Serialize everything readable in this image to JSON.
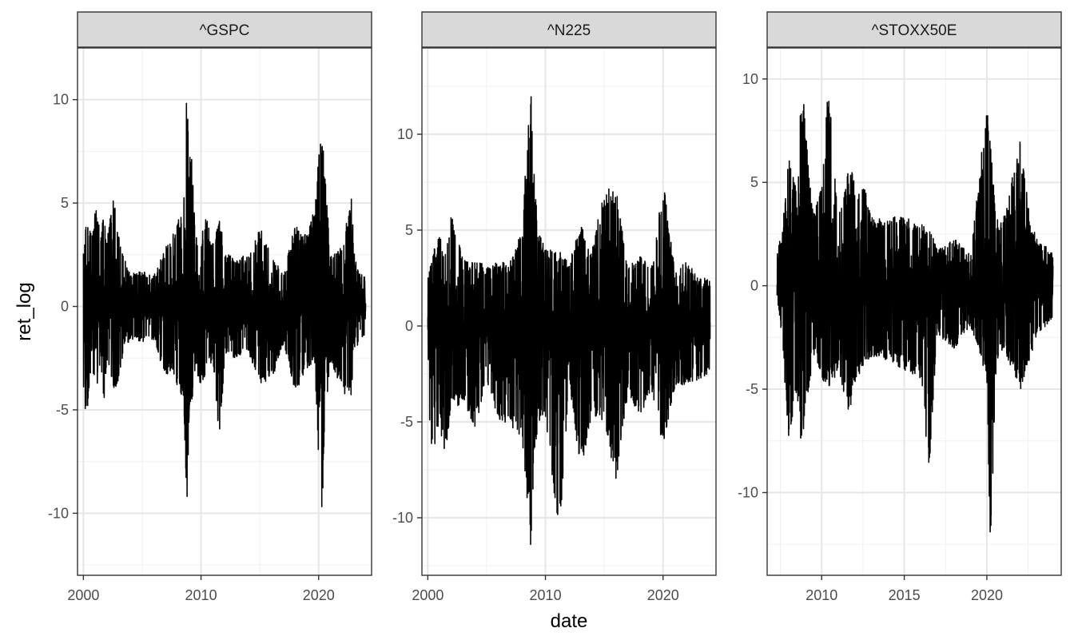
{
  "chart_data": {
    "type": "line",
    "xlabel": "date",
    "ylabel": "ret_log",
    "facets": [
      {
        "name": "^GSPC",
        "xlim": [
          1999.5,
          2024.5
        ],
        "ylim": [
          -13,
          12.5
        ],
        "xticks": [
          2000,
          2010,
          2020
        ],
        "xtick_labels": [
          "2000",
          "2010",
          "2020"
        ],
        "yticks": [
          -10,
          -5,
          0,
          5,
          10
        ],
        "ytick_labels": [
          "-10",
          "-5",
          "0",
          "5",
          "10"
        ],
        "start": 2000.0,
        "end": 2024.0,
        "envelope": [
          [
            2000.0,
            2.7,
            -3.9
          ],
          [
            2000.3,
            4.6,
            -6.0
          ],
          [
            2000.7,
            3.3,
            -2.5
          ],
          [
            2001.0,
            4.8,
            -4.4
          ],
          [
            2001.5,
            3.8,
            -2.5
          ],
          [
            2001.7,
            4.6,
            -5.0
          ],
          [
            2002.0,
            3.2,
            -2.6
          ],
          [
            2002.6,
            5.6,
            -4.2
          ],
          [
            2003.0,
            3.4,
            -3.6
          ],
          [
            2003.5,
            2.3,
            -2.0
          ],
          [
            2004.0,
            1.6,
            -1.6
          ],
          [
            2005.0,
            1.7,
            -1.7
          ],
          [
            2006.0,
            1.5,
            -1.6
          ],
          [
            2007.0,
            2.9,
            -3.5
          ],
          [
            2007.5,
            3.5,
            -3.1
          ],
          [
            2008.0,
            4.2,
            -4.1
          ],
          [
            2008.5,
            4.5,
            -4.4
          ],
          [
            2008.8,
            11.0,
            -9.5
          ],
          [
            2009.0,
            7.5,
            -5.4
          ],
          [
            2009.3,
            7.1,
            -4.5
          ],
          [
            2009.5,
            3.5,
            -3.0
          ],
          [
            2010.0,
            3.3,
            -3.9
          ],
          [
            2010.4,
            4.4,
            -3.2
          ],
          [
            2011.0,
            3.0,
            -2.6
          ],
          [
            2011.6,
            4.7,
            -6.9
          ],
          [
            2012.0,
            2.5,
            -2.4
          ],
          [
            2013.0,
            2.5,
            -2.5
          ],
          [
            2014.0,
            2.4,
            -2.3
          ],
          [
            2015.0,
            3.9,
            -3.9
          ],
          [
            2016.0,
            2.5,
            -3.6
          ],
          [
            2017.0,
            1.5,
            -1.8
          ],
          [
            2018.0,
            4.1,
            -4.1
          ],
          [
            2019.0,
            3.4,
            -3.2
          ],
          [
            2019.7,
            5.0,
            -2.8
          ],
          [
            2020.2,
            9.0,
            -12.7
          ],
          [
            2020.5,
            6.8,
            -6.0
          ],
          [
            2021.0,
            2.4,
            -2.7
          ],
          [
            2022.0,
            3.0,
            -4.2
          ],
          [
            2022.8,
            5.4,
            -4.3
          ],
          [
            2023.0,
            2.7,
            -2.5
          ],
          [
            2023.5,
            1.6,
            -1.5
          ],
          [
            2024.0,
            1.4,
            -1.5
          ]
        ]
      },
      {
        "name": "^N225",
        "xlim": [
          1999.5,
          2024.5
        ],
        "ylim": [
          -13,
          14.5
        ],
        "xticks": [
          2000,
          2010,
          2020
        ],
        "xtick_labels": [
          "2000",
          "2010",
          "2020"
        ],
        "yticks": [
          -10,
          -5,
          0,
          5,
          10
        ],
        "ytick_labels": [
          "-10",
          "-5",
          "0",
          "5",
          "10"
        ],
        "start": 2000.0,
        "end": 2024.0,
        "envelope": [
          [
            2000.0,
            2.5,
            -2.5
          ],
          [
            2000.3,
            3.6,
            -7.2
          ],
          [
            2001.0,
            4.8,
            -5.2
          ],
          [
            2001.5,
            4.0,
            -7.0
          ],
          [
            2002.0,
            5.8,
            -4.5
          ],
          [
            2003.0,
            3.5,
            -3.9
          ],
          [
            2004.0,
            3.4,
            -5.3
          ],
          [
            2005.0,
            3.2,
            -3.1
          ],
          [
            2006.0,
            3.3,
            -4.8
          ],
          [
            2007.0,
            3.4,
            -5.5
          ],
          [
            2008.0,
            5.0,
            -5.7
          ],
          [
            2008.8,
            13.3,
            -12.1
          ],
          [
            2009.0,
            9.5,
            -7.0
          ],
          [
            2009.4,
            5.0,
            -5.0
          ],
          [
            2010.0,
            4.0,
            -4.8
          ],
          [
            2011.2,
            4.0,
            -11.1
          ],
          [
            2012.0,
            3.2,
            -3.0
          ],
          [
            2013.0,
            5.5,
            -7.6
          ],
          [
            2014.0,
            4.1,
            -4.6
          ],
          [
            2015.0,
            7.4,
            -5.0
          ],
          [
            2016.0,
            7.2,
            -8.2
          ],
          [
            2017.0,
            3.0,
            -3.5
          ],
          [
            2018.0,
            3.8,
            -4.8
          ],
          [
            2019.0,
            3.0,
            -3.4
          ],
          [
            2020.0,
            7.8,
            -6.3
          ],
          [
            2021.0,
            3.0,
            -3.2
          ],
          [
            2022.0,
            3.4,
            -3.0
          ],
          [
            2023.0,
            2.5,
            -2.9
          ],
          [
            2024.0,
            2.5,
            -2.5
          ]
        ]
      },
      {
        "name": "^STOXX50E",
        "xlim": [
          2006.7,
          2024.5
        ],
        "ylim": [
          -14,
          11.5
        ],
        "xticks": [
          2010,
          2015,
          2020
        ],
        "xtick_labels": [
          "2010",
          "2015",
          "2020"
        ],
        "yticks": [
          -10,
          -5,
          0,
          5,
          10
        ],
        "ytick_labels": [
          "-10",
          "-5",
          "0",
          "5",
          "10"
        ],
        "start": 2007.3,
        "end": 2024.0,
        "envelope": [
          [
            2007.3,
            1.8,
            -0.5
          ],
          [
            2007.6,
            2.5,
            -2.5
          ],
          [
            2008.0,
            6.2,
            -7.6
          ],
          [
            2008.5,
            4.5,
            -5.0
          ],
          [
            2008.8,
            10.4,
            -8.2
          ],
          [
            2009.2,
            5.8,
            -5.2
          ],
          [
            2009.5,
            3.5,
            -3.3
          ],
          [
            2010.0,
            5.0,
            -4.5
          ],
          [
            2010.4,
            9.8,
            -4.9
          ],
          [
            2011.0,
            3.5,
            -4.2
          ],
          [
            2011.7,
            5.9,
            -6.3
          ],
          [
            2012.0,
            5.0,
            -4.7
          ],
          [
            2012.5,
            5.1,
            -4.0
          ],
          [
            2013.0,
            3.4,
            -3.5
          ],
          [
            2014.0,
            3.3,
            -3.6
          ],
          [
            2015.0,
            3.4,
            -4.1
          ],
          [
            2016.0,
            3.0,
            -4.5
          ],
          [
            2016.5,
            2.9,
            -9.0
          ],
          [
            2017.0,
            1.7,
            -2.3
          ],
          [
            2018.0,
            2.3,
            -3.1
          ],
          [
            2019.0,
            1.5,
            -2.0
          ],
          [
            2020.0,
            8.8,
            -4.5
          ],
          [
            2020.2,
            7.0,
            -13.3
          ],
          [
            2020.6,
            3.2,
            -3.8
          ],
          [
            2021.0,
            3.2,
            -3.0
          ],
          [
            2022.0,
            7.2,
            -5.1
          ],
          [
            2022.6,
            3.3,
            -3.6
          ],
          [
            2023.0,
            2.3,
            -2.4
          ],
          [
            2024.0,
            1.6,
            -1.6
          ]
        ]
      }
    ]
  }
}
